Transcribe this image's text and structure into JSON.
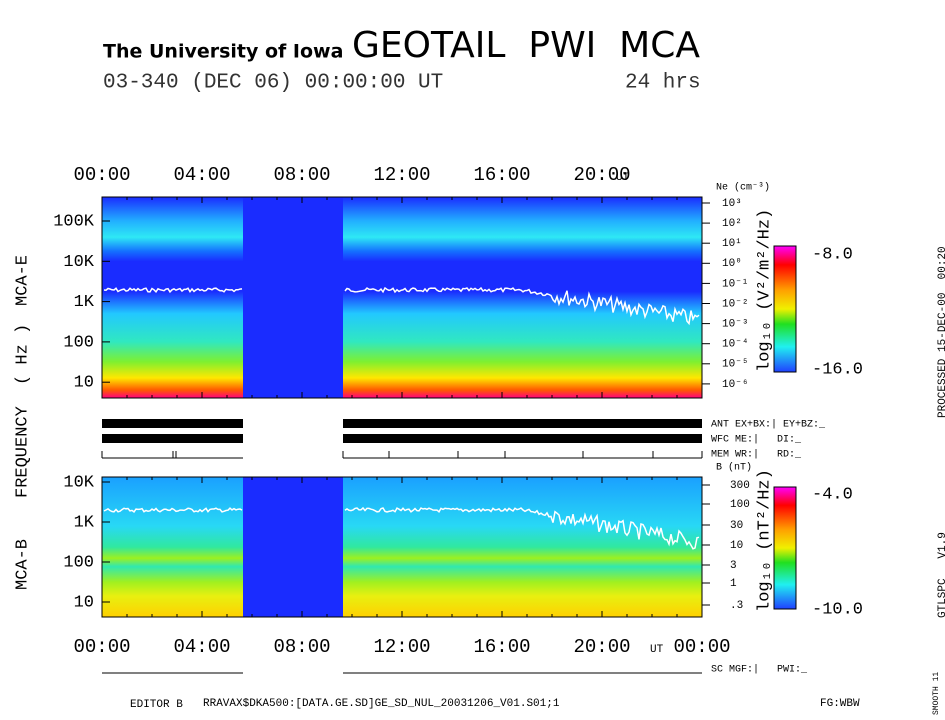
{
  "header": {
    "institution": "The University of Iowa",
    "title": "GEOTAIL  PWI  MCA",
    "date": "03-340 (DEC 06) 00:00:00 UT",
    "duration": "24 hrs"
  },
  "time_axis": {
    "top_labels": [
      "00:00",
      "04:00",
      "08:00",
      "12:00",
      "16:00",
      "20:00"
    ],
    "bottom_labels": [
      "00:00",
      "04:00",
      "08:00",
      "12:00",
      "16:00",
      "20:00",
      "00:00"
    ],
    "unit": "UT"
  },
  "y_axis": {
    "label_word": "FREQUENCY",
    "label_unit": "( Hz )"
  },
  "mca_e": {
    "name": "MCA-E",
    "freq_labels": [
      "100K",
      "10K",
      "1K",
      "100",
      "10"
    ],
    "density_title": "Ne (cm⁻³)",
    "density_labels": [
      "10³",
      "10²",
      "10¹",
      "10⁰",
      "10⁻¹",
      "10⁻²",
      "10⁻³",
      "10⁻⁴",
      "10⁻⁵",
      "10⁻⁶"
    ],
    "colorbar_label": "log₁₀ (V²/m²/Hz)",
    "colorbar_max": "-8.0",
    "colorbar_min": "-16.0"
  },
  "mca_b": {
    "name": "MCA-B",
    "freq_labels": [
      "10K",
      "1K",
      "100",
      "10"
    ],
    "field_title": "B (nT)",
    "field_labels": [
      "300",
      "100",
      "30",
      "10",
      "3",
      "1",
      ".3"
    ],
    "colorbar_label": "log₁₀ (nT²/Hz)",
    "colorbar_max": "-4.0",
    "colorbar_min": "-10.0"
  },
  "status": {
    "ant": "ANT EX+BX:| EY+BZ:_",
    "wfc": "WFC ME:|   DI:_",
    "mem": "MEM WR:|   RD:_",
    "sc": "SC MGF:|   PWI:_"
  },
  "side": {
    "processed": "PROCESSED 15-DEC-00  00:20",
    "version": "GTLSPC   V1.9",
    "smooth": "SMOOTH 11"
  },
  "footer": {
    "editor": "EDITOR B",
    "file": "RRAVAX$DKA500:[DATA.GE.SD]GE_SD_NUL_20031206_V01.S01;1",
    "fg": "FG:WBW"
  }
}
